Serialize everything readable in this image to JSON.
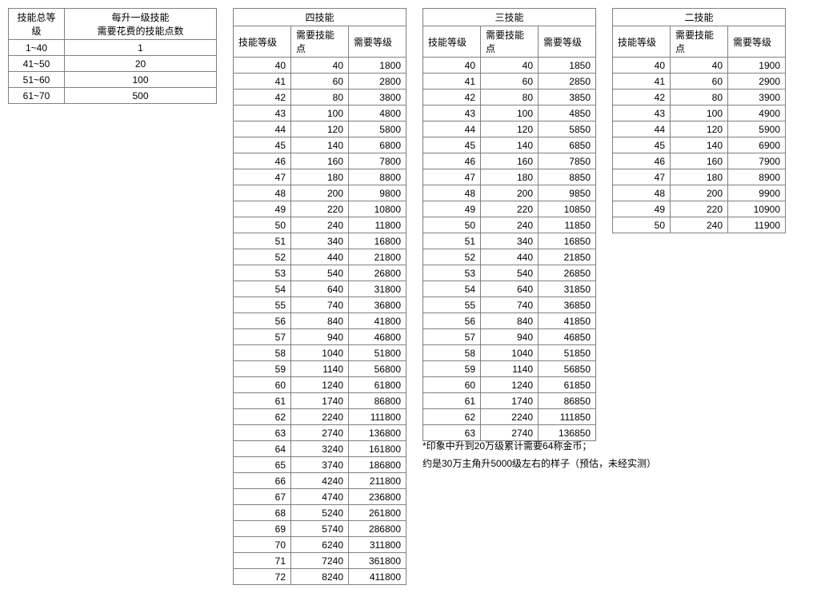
{
  "summary": {
    "headers": [
      "技能总等级",
      "每升一级技能\n需要花费的技能点数"
    ],
    "rows": [
      [
        "1~40",
        "1"
      ],
      [
        "41~50",
        "20"
      ],
      [
        "51~60",
        "100"
      ],
      [
        "61~70",
        "500"
      ]
    ]
  },
  "skill_tables": [
    {
      "title": "四技能",
      "columns": [
        "技能等级",
        "需要技能点",
        "需要等级"
      ],
      "rows": [
        [
          40,
          40,
          1800
        ],
        [
          41,
          60,
          2800
        ],
        [
          42,
          80,
          3800
        ],
        [
          43,
          100,
          4800
        ],
        [
          44,
          120,
          5800
        ],
        [
          45,
          140,
          6800
        ],
        [
          46,
          160,
          7800
        ],
        [
          47,
          180,
          8800
        ],
        [
          48,
          200,
          9800
        ],
        [
          49,
          220,
          10800
        ],
        [
          50,
          240,
          11800
        ],
        [
          51,
          340,
          16800
        ],
        [
          52,
          440,
          21800
        ],
        [
          53,
          540,
          26800
        ],
        [
          54,
          640,
          31800
        ],
        [
          55,
          740,
          36800
        ],
        [
          56,
          840,
          41800
        ],
        [
          57,
          940,
          46800
        ],
        [
          58,
          1040,
          51800
        ],
        [
          59,
          1140,
          56800
        ],
        [
          60,
          1240,
          61800
        ],
        [
          61,
          1740,
          86800
        ],
        [
          62,
          2240,
          111800
        ],
        [
          63,
          2740,
          136800
        ],
        [
          64,
          3240,
          161800
        ],
        [
          65,
          3740,
          186800
        ],
        [
          66,
          4240,
          211800
        ],
        [
          67,
          4740,
          236800
        ],
        [
          68,
          5240,
          261800
        ],
        [
          69,
          5740,
          286800
        ],
        [
          70,
          6240,
          311800
        ],
        [
          71,
          7240,
          361800
        ],
        [
          72,
          8240,
          411800
        ]
      ]
    },
    {
      "title": "三技能",
      "columns": [
        "技能等级",
        "需要技能点",
        "需要等级"
      ],
      "rows": [
        [
          40,
          40,
          1850
        ],
        [
          41,
          60,
          2850
        ],
        [
          42,
          80,
          3850
        ],
        [
          43,
          100,
          4850
        ],
        [
          44,
          120,
          5850
        ],
        [
          45,
          140,
          6850
        ],
        [
          46,
          160,
          7850
        ],
        [
          47,
          180,
          8850
        ],
        [
          48,
          200,
          9850
        ],
        [
          49,
          220,
          10850
        ],
        [
          50,
          240,
          11850
        ],
        [
          51,
          340,
          16850
        ],
        [
          52,
          440,
          21850
        ],
        [
          53,
          540,
          26850
        ],
        [
          54,
          640,
          31850
        ],
        [
          55,
          740,
          36850
        ],
        [
          56,
          840,
          41850
        ],
        [
          57,
          940,
          46850
        ],
        [
          58,
          1040,
          51850
        ],
        [
          59,
          1140,
          56850
        ],
        [
          60,
          1240,
          61850
        ],
        [
          61,
          1740,
          86850
        ],
        [
          62,
          2240,
          111850
        ],
        [
          63,
          2740,
          136850
        ]
      ]
    },
    {
      "title": "二技能",
      "columns": [
        "技能等级",
        "需要技能点",
        "需要等级"
      ],
      "rows": [
        [
          40,
          40,
          1900
        ],
        [
          41,
          60,
          2900
        ],
        [
          42,
          80,
          3900
        ],
        [
          43,
          100,
          4900
        ],
        [
          44,
          120,
          5900
        ],
        [
          45,
          140,
          6900
        ],
        [
          46,
          160,
          7900
        ],
        [
          47,
          180,
          8900
        ],
        [
          48,
          200,
          9900
        ],
        [
          49,
          220,
          10900
        ],
        [
          50,
          240,
          11900
        ]
      ]
    }
  ],
  "notes": {
    "line1": "*印象中升到20万级累计需要64称金币；",
    "line2": "约是30万主角升5000级左右的样子（预估，未经实测）"
  },
  "style": {
    "border_color": "#808080",
    "text_color": "#000000",
    "background_color": "#ffffff",
    "font_size": 12
  }
}
